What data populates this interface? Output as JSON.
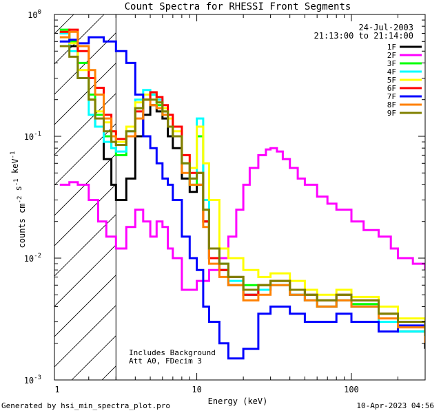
{
  "footer": {
    "generated_by": "Generated by hsi_min_spectra_plot.pro",
    "timestamp": "10-Apr-2023 04:56"
  },
  "chart_data": {
    "type": "line",
    "title": "Count Spectra for RHESSI Front Segments",
    "xlabel": "Energy (keV)",
    "ylabel": "counts cm-2 s-1 keV-1",
    "x_scale": "log",
    "y_scale": "log",
    "xlim": [
      1.2,
      300
    ],
    "ylim": [
      0.001,
      1
    ],
    "x_ticklabels": [
      "1",
      "10",
      "100"
    ],
    "y_ticklabels": [
      "10^-3",
      "10^-2",
      "10^-1",
      "10^0"
    ],
    "legend_placement": "top-right",
    "annotations": {
      "date": "24-Jul-2003",
      "time_range": "21:13:00 to 21:14:00",
      "background_note": "Includes Background",
      "attenuator_note": "Att A0, FDecim 3"
    },
    "hatched_region": {
      "x_from": 1.2,
      "x_to": 3.0
    },
    "series": [
      {
        "name": "1F",
        "color": "#000000",
        "x": [
          1.3,
          1.5,
          1.7,
          2.0,
          2.2,
          2.5,
          2.8,
          3.0,
          3.5,
          4.0,
          4.5,
          5.0,
          5.5,
          6.0,
          6.5,
          7.0,
          8.0,
          9.0,
          10.0,
          11.0,
          12.0,
          14.0,
          16.0,
          20.0,
          25.0,
          30.0,
          40.0,
          50.0,
          60.0,
          80.0,
          100.0,
          150.0,
          200.0,
          300.0
        ],
        "y": [
          0.7,
          0.55,
          0.3,
          0.2,
          0.12,
          0.065,
          0.04,
          0.03,
          0.045,
          0.1,
          0.15,
          0.18,
          0.16,
          0.14,
          0.1,
          0.08,
          0.045,
          0.035,
          0.04,
          0.02,
          0.01,
          0.008,
          0.006,
          0.005,
          0.0055,
          0.006,
          0.005,
          0.0045,
          0.004,
          0.0045,
          0.004,
          0.003,
          0.0025,
          0.0018
        ]
      },
      {
        "name": "2F",
        "color": "#ff00ff",
        "x": [
          1.3,
          1.5,
          1.7,
          2.0,
          2.3,
          2.6,
          3.0,
          3.5,
          4.0,
          4.5,
          5.0,
          5.5,
          6.0,
          6.5,
          7.0,
          8.0,
          10.0,
          12.0,
          14.0,
          16.0,
          18.0,
          20.0,
          22.0,
          25.0,
          28.0,
          30.0,
          33.0,
          36.0,
          40.0,
          45.0,
          50.0,
          60.0,
          70.0,
          80.0,
          100.0,
          120.0,
          150.0,
          180.0,
          200.0,
          250.0,
          300.0
        ],
        "y": [
          0.04,
          0.042,
          0.04,
          0.03,
          0.02,
          0.015,
          0.012,
          0.018,
          0.025,
          0.02,
          0.015,
          0.02,
          0.018,
          0.012,
          0.01,
          0.0055,
          0.0065,
          0.008,
          0.01,
          0.015,
          0.025,
          0.04,
          0.055,
          0.07,
          0.078,
          0.08,
          0.075,
          0.065,
          0.055,
          0.045,
          0.04,
          0.032,
          0.028,
          0.025,
          0.02,
          0.017,
          0.015,
          0.012,
          0.01,
          0.009,
          0.008
        ]
      },
      {
        "name": "3F",
        "color": "#00ff00",
        "x": [
          1.3,
          1.5,
          1.7,
          2.0,
          2.2,
          2.5,
          2.8,
          3.0,
          3.5,
          4.0,
          4.5,
          5.0,
          5.5,
          6.0,
          6.5,
          7.0,
          8.0,
          9.0,
          10.0,
          11.0,
          12.0,
          14.0,
          16.0,
          20.0,
          25.0,
          30.0,
          40.0,
          50.0,
          60.0,
          80.0,
          100.0,
          150.0,
          200.0,
          300.0
        ],
        "y": [
          0.75,
          0.6,
          0.4,
          0.22,
          0.15,
          0.1,
          0.08,
          0.07,
          0.1,
          0.17,
          0.2,
          0.22,
          0.18,
          0.16,
          0.12,
          0.1,
          0.06,
          0.04,
          0.1,
          0.025,
          0.012,
          0.009,
          0.007,
          0.006,
          0.006,
          0.0065,
          0.0055,
          0.005,
          0.0045,
          0.005,
          0.0042,
          0.0035,
          0.003,
          0.0022
        ]
      },
      {
        "name": "4F",
        "color": "#00ffff",
        "x": [
          1.3,
          1.5,
          1.7,
          2.0,
          2.2,
          2.5,
          2.8,
          3.0,
          3.5,
          4.0,
          4.5,
          5.0,
          5.5,
          6.0,
          6.5,
          7.0,
          8.0,
          9.0,
          10.0,
          11.0,
          12.0,
          14.0,
          16.0,
          20.0,
          25.0,
          30.0,
          40.0,
          50.0,
          60.0,
          80.0,
          100.0,
          150.0,
          200.0,
          300.0
        ],
        "y": [
          0.7,
          0.5,
          0.3,
          0.15,
          0.12,
          0.09,
          0.08,
          0.075,
          0.11,
          0.2,
          0.24,
          0.22,
          0.2,
          0.15,
          0.12,
          0.1,
          0.06,
          0.045,
          0.14,
          0.03,
          0.01,
          0.008,
          0.0065,
          0.005,
          0.0055,
          0.006,
          0.005,
          0.0045,
          0.004,
          0.0045,
          0.004,
          0.003,
          0.0025,
          0.002
        ]
      },
      {
        "name": "5F",
        "color": "#ffff00",
        "x": [
          1.3,
          1.5,
          1.7,
          2.0,
          2.2,
          2.5,
          2.8,
          3.0,
          3.5,
          4.0,
          4.5,
          5.0,
          5.5,
          6.0,
          6.5,
          7.0,
          8.0,
          9.0,
          10.0,
          11.0,
          12.0,
          14.0,
          16.0,
          20.0,
          25.0,
          30.0,
          40.0,
          50.0,
          60.0,
          80.0,
          100.0,
          150.0,
          200.0,
          300.0
        ],
        "y": [
          0.72,
          0.58,
          0.35,
          0.2,
          0.16,
          0.13,
          0.11,
          0.09,
          0.12,
          0.19,
          0.22,
          0.23,
          0.19,
          0.17,
          0.14,
          0.11,
          0.07,
          0.055,
          0.12,
          0.06,
          0.03,
          0.012,
          0.01,
          0.008,
          0.007,
          0.0075,
          0.0065,
          0.0055,
          0.005,
          0.0055,
          0.0048,
          0.004,
          0.0032,
          0.0025
        ]
      },
      {
        "name": "6F",
        "color": "#ff0000",
        "x": [
          1.3,
          1.5,
          1.7,
          2.0,
          2.2,
          2.5,
          2.8,
          3.0,
          3.5,
          4.0,
          4.5,
          5.0,
          5.5,
          6.0,
          6.5,
          7.0,
          8.0,
          9.0,
          10.0,
          11.0,
          12.0,
          14.0,
          16.0,
          20.0,
          25.0,
          30.0,
          40.0,
          50.0,
          60.0,
          80.0,
          100.0,
          150.0,
          200.0,
          300.0
        ],
        "y": [
          0.72,
          0.75,
          0.5,
          0.3,
          0.25,
          0.15,
          0.11,
          0.095,
          0.1,
          0.16,
          0.2,
          0.23,
          0.21,
          0.18,
          0.15,
          0.12,
          0.07,
          0.05,
          0.05,
          0.02,
          0.01,
          0.008,
          0.007,
          0.005,
          0.006,
          0.0065,
          0.0055,
          0.005,
          0.0045,
          0.005,
          0.0045,
          0.0035,
          0.003,
          0.0022
        ]
      },
      {
        "name": "7F",
        "color": "#0000ff",
        "x": [
          1.3,
          1.5,
          1.7,
          2.0,
          2.5,
          3.0,
          3.5,
          4.0,
          4.5,
          5.0,
          5.5,
          6.0,
          6.5,
          7.0,
          8.0,
          9.0,
          10.0,
          11.0,
          12.0,
          14.0,
          16.0,
          20.0,
          25.0,
          30.0,
          40.0,
          50.0,
          60.0,
          80.0,
          100.0,
          150.0,
          200.0,
          300.0
        ],
        "y": [
          0.6,
          0.62,
          0.58,
          0.65,
          0.6,
          0.5,
          0.4,
          0.22,
          0.1,
          0.08,
          0.06,
          0.045,
          0.04,
          0.03,
          0.015,
          0.01,
          0.008,
          0.004,
          0.003,
          0.002,
          0.0015,
          0.0018,
          0.0035,
          0.004,
          0.0035,
          0.003,
          0.003,
          0.0035,
          0.003,
          0.0025,
          0.0028,
          0.0025
        ]
      },
      {
        "name": "8F",
        "color": "#ff8000",
        "x": [
          1.3,
          1.5,
          1.7,
          2.0,
          2.2,
          2.5,
          2.8,
          3.0,
          3.5,
          4.0,
          4.5,
          5.0,
          5.5,
          6.0,
          6.5,
          7.0,
          8.0,
          9.0,
          10.0,
          11.0,
          12.0,
          14.0,
          16.0,
          20.0,
          25.0,
          30.0,
          40.0,
          50.0,
          60.0,
          80.0,
          100.0,
          150.0,
          200.0,
          300.0
        ],
        "y": [
          0.65,
          0.72,
          0.55,
          0.35,
          0.22,
          0.14,
          0.1,
          0.085,
          0.1,
          0.14,
          0.2,
          0.18,
          0.17,
          0.15,
          0.12,
          0.1,
          0.05,
          0.04,
          0.04,
          0.018,
          0.009,
          0.007,
          0.006,
          0.0045,
          0.005,
          0.006,
          0.005,
          0.0045,
          0.004,
          0.0045,
          0.004,
          0.0032,
          0.0027,
          0.002
        ]
      },
      {
        "name": "9F",
        "color": "#808000",
        "x": [
          1.3,
          1.5,
          1.7,
          2.0,
          2.2,
          2.5,
          2.8,
          3.0,
          3.5,
          4.0,
          4.5,
          5.0,
          5.5,
          6.0,
          6.5,
          7.0,
          8.0,
          9.0,
          10.0,
          11.0,
          12.0,
          14.0,
          16.0,
          20.0,
          25.0,
          30.0,
          40.0,
          50.0,
          60.0,
          80.0,
          100.0,
          150.0,
          200.0,
          300.0
        ],
        "y": [
          0.55,
          0.45,
          0.3,
          0.2,
          0.14,
          0.11,
          0.09,
          0.085,
          0.11,
          0.17,
          0.2,
          0.2,
          0.19,
          0.16,
          0.12,
          0.1,
          0.06,
          0.045,
          0.05,
          0.025,
          0.012,
          0.009,
          0.007,
          0.0055,
          0.006,
          0.0065,
          0.0055,
          0.005,
          0.0045,
          0.005,
          0.0045,
          0.0035,
          0.003,
          0.0023
        ]
      }
    ]
  }
}
